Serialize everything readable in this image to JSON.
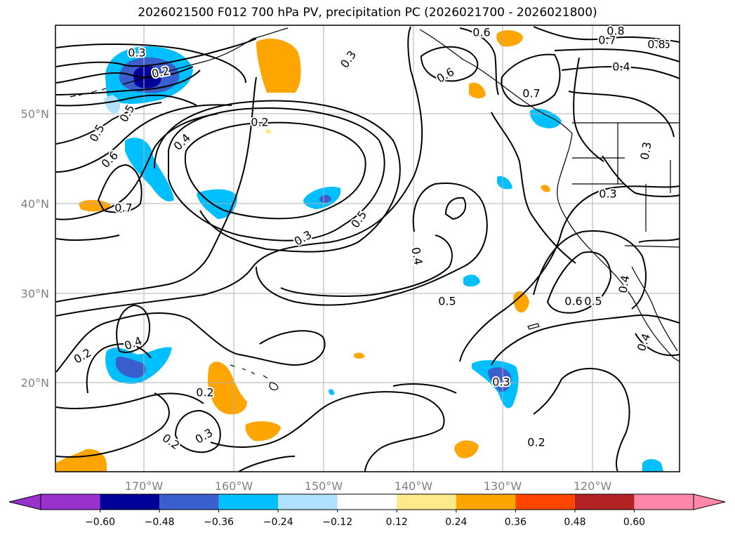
{
  "title": "2026021500 F012 700 hPa PV, precipitation PC (2026021700 - 2026021800)",
  "lat_labels": [
    "50°N",
    "40°N",
    "30°N",
    "20°N"
  ],
  "lon_labels": [
    "170°W",
    "160°W",
    "150°W",
    "140°W",
    "130°W",
    "120°W"
  ],
  "contour_labels": [
    "0.2",
    "0.2",
    "0.2",
    "0.2",
    "0.2",
    "0.2",
    "0.3",
    "0.3",
    "0.3",
    "0.3",
    "0.3",
    "0.3",
    "0.3",
    "0.4",
    "0.4",
    "0.4",
    "0.4",
    "0.4",
    "0.4",
    "0.5",
    "0.5",
    "0.5",
    "0.5",
    "0.5",
    "0.6",
    "0.6",
    "0.6",
    "0.6",
    "0.6",
    "0.7",
    "0.7",
    "0.7",
    "0.8",
    "0.8"
  ],
  "colorbar": {
    "ticks": [
      "−0.60",
      "−0.48",
      "−0.36",
      "−0.24",
      "−0.12",
      "0.12",
      "0.24",
      "0.36",
      "0.48",
      "0.60"
    ],
    "colors": {
      "under": "#9932cc",
      "bins": [
        "#9932cc",
        "#000099",
        "#3a5fcd",
        "#00bfff",
        "#b0e2ff",
        "#ffffff",
        "#ffe98a",
        "#ffa500",
        "#ff4500",
        "#b22222",
        "#ff88aa"
      ],
      "over": "#ff88aa"
    }
  }
}
